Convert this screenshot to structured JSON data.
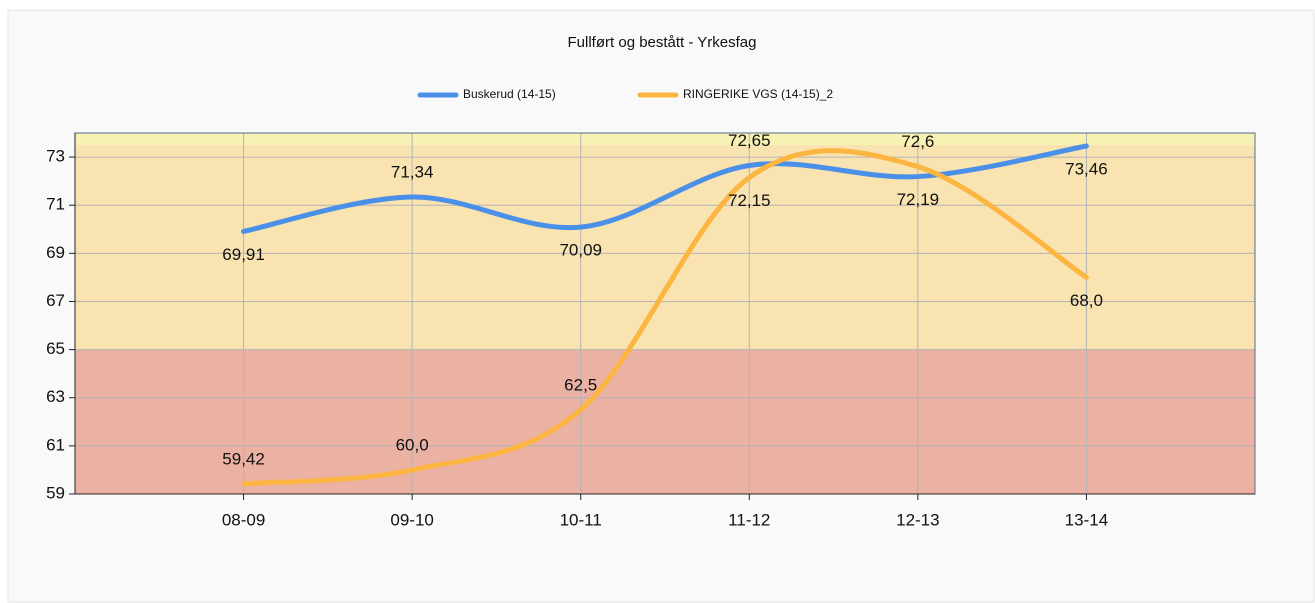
{
  "chart_data": {
    "type": "line",
    "title": "Fullført og bestått - Yrkesfag",
    "categories": [
      "08-09",
      "09-10",
      "10-11",
      "11-12",
      "12-13",
      "13-14"
    ],
    "series": [
      {
        "name": "Buskerud (14-15)",
        "color": "#4a8fe8",
        "values": [
          69.91,
          71.34,
          70.09,
          72.65,
          72.19,
          73.46
        ],
        "value_labels": [
          "69,91",
          "71,34",
          "70,09",
          "72,65",
          "72,19",
          "73,46"
        ]
      },
      {
        "name": "RINGERIKE VGS (14-15)_2",
        "color": "#fbb540",
        "values": [
          59.42,
          60.0,
          62.5,
          72.15,
          72.6,
          68.0
        ],
        "value_labels": [
          "59,42",
          "60,0",
          "62,5",
          "72,15",
          "72,6",
          "68,0"
        ]
      }
    ],
    "ylim": [
      59,
      74
    ],
    "yticks": [
      59,
      61,
      63,
      65,
      67,
      69,
      71,
      73
    ],
    "grid": true,
    "bands": [
      {
        "from": 59,
        "to": 65,
        "color": "#ebb1a2"
      },
      {
        "from": 65,
        "to": 73.5,
        "color": "#f9e3b1"
      },
      {
        "from": 73.5,
        "to": 74,
        "color": "#f7f2b4"
      }
    ],
    "legend": "top"
  }
}
